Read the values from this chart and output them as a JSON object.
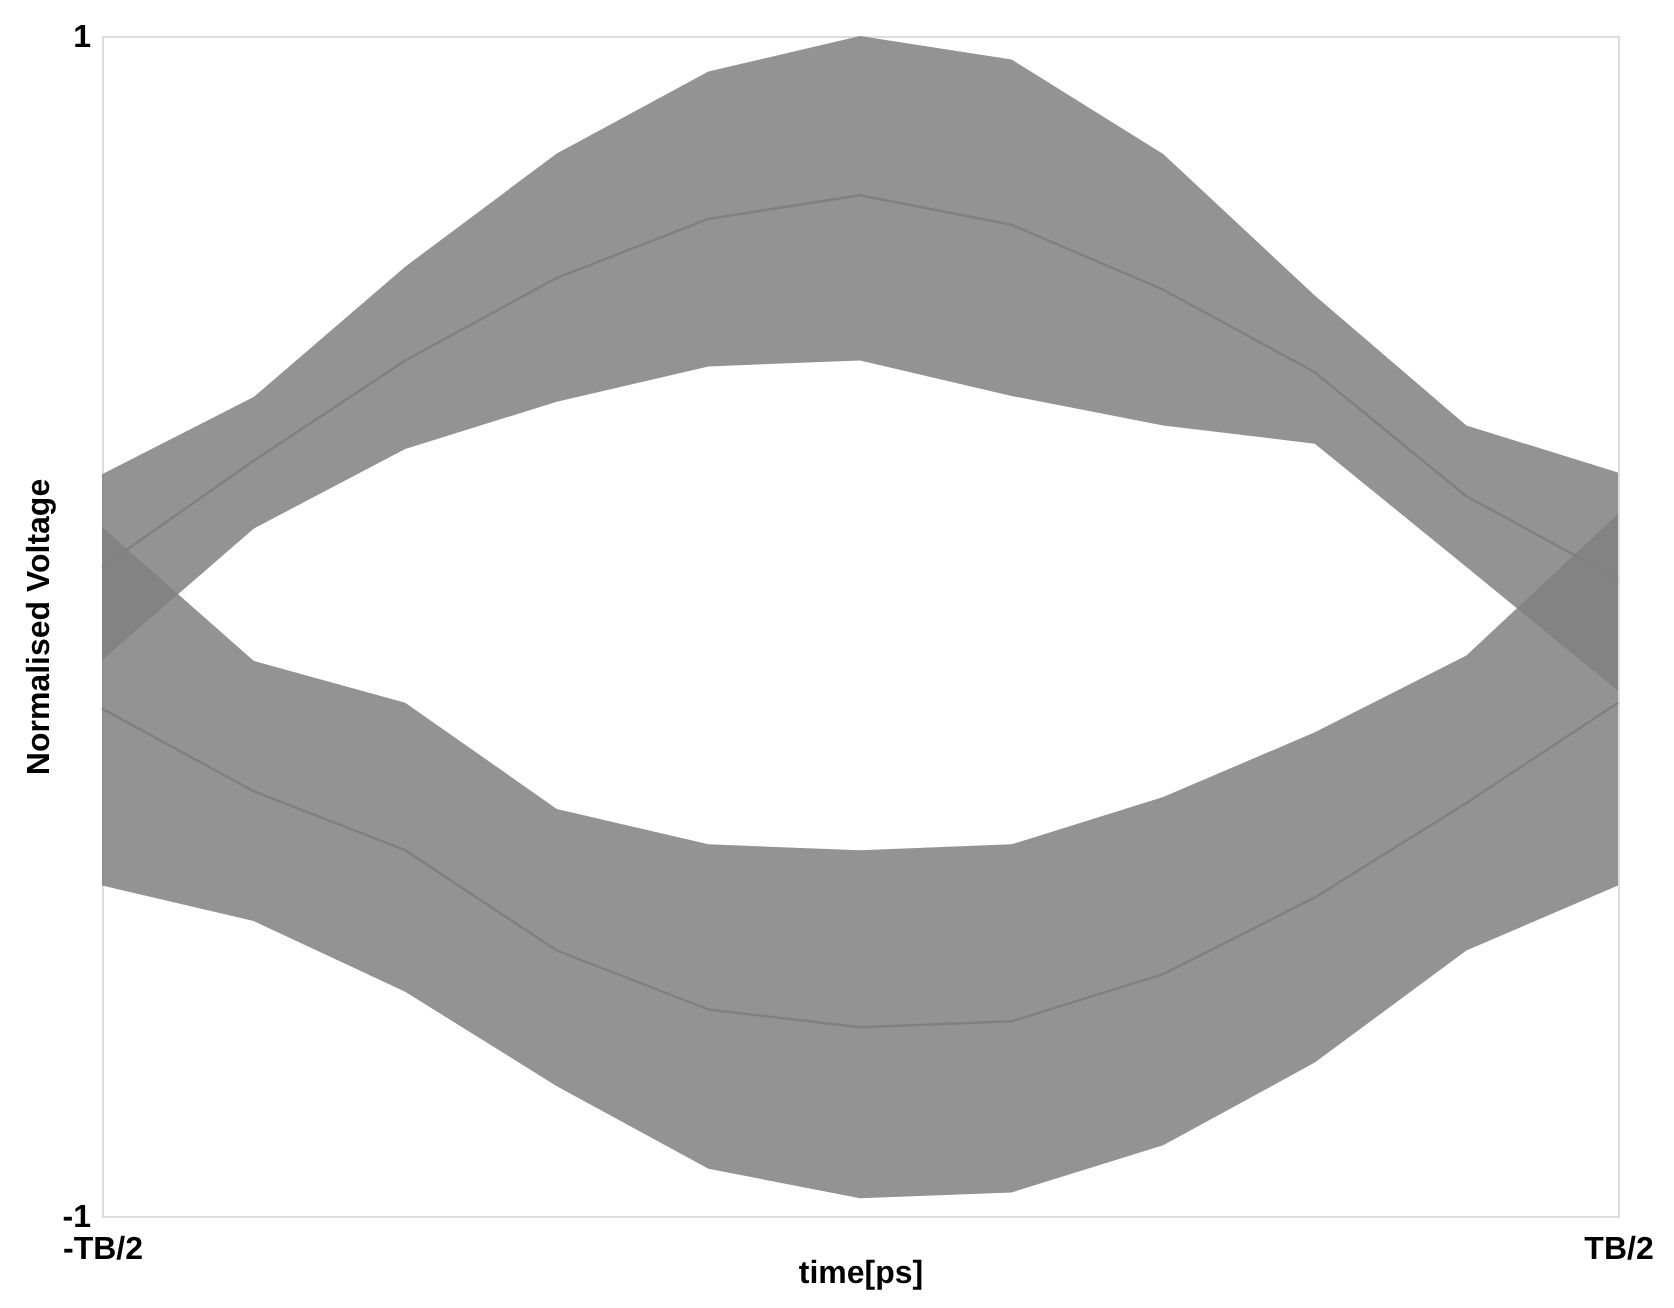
{
  "chart_data": {
    "type": "line",
    "xlabel": "time[ps]",
    "ylabel": "Normalised Voltage",
    "categories": [
      "-TB/2",
      null,
      null,
      null,
      null,
      null,
      null,
      null,
      null,
      null,
      "TB/2"
    ],
    "ylim": [
      -1,
      1
    ],
    "yticks": [
      -1,
      1
    ],
    "series": [
      {
        "color": "#808080",
        "values": [
          0.1,
          0.28,
          0.45,
          0.59,
          0.69,
          0.73,
          0.68,
          0.57,
          0.43,
          0.22,
          0.08
        ],
        "lower": [
          -0.058,
          0.165,
          0.3,
          0.38,
          0.44,
          0.45,
          0.39,
          0.34,
          0.309,
          0.1,
          -0.11
        ],
        "upper": [
          0.257,
          0.388,
          0.609,
          0.801,
          0.94,
          1.0,
          0.96,
          0.8,
          0.56,
          0.34,
          0.26
        ]
      },
      {
        "color": "#808080",
        "values": [
          -0.14,
          -0.28,
          -0.38,
          -0.55,
          -0.65,
          -0.68,
          -0.67,
          -0.59,
          -0.46,
          -0.3,
          -0.13
        ],
        "lower": [
          -0.44,
          -0.5,
          -0.62,
          -0.78,
          -0.92,
          -0.97,
          -0.96,
          -0.88,
          -0.74,
          -0.55,
          -0.44
        ],
        "upper": [
          0.168,
          -0.059,
          -0.13,
          -0.31,
          -0.37,
          -0.38,
          -0.37,
          -0.29,
          -0.18,
          -0.05,
          0.19
        ]
      }
    ],
    "marker": "none",
    "line_style": "solid"
  }
}
